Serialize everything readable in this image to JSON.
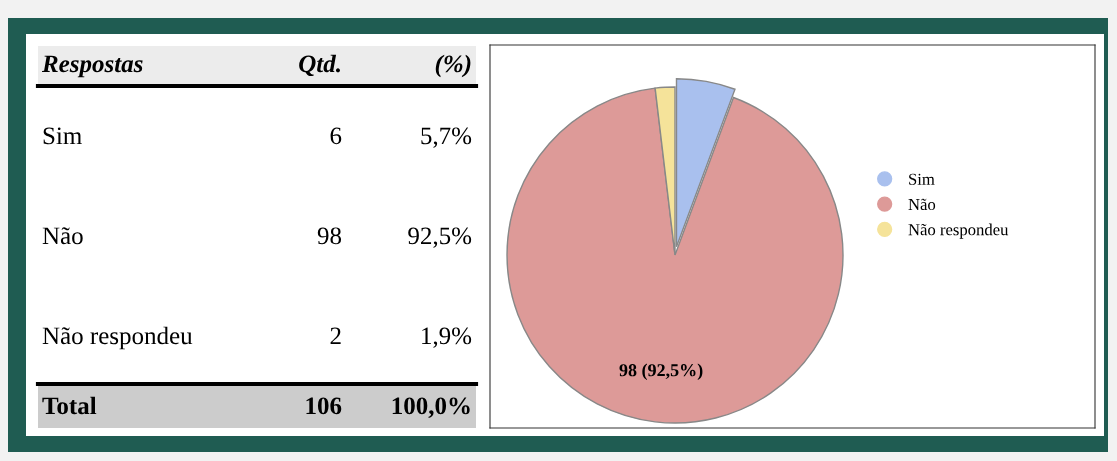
{
  "chart_data": {
    "type": "pie",
    "categories": [
      "Sim",
      "Não",
      "Não respondeu"
    ],
    "values": [
      6,
      98,
      2
    ],
    "colors": [
      "#a9c0ee",
      "#dd9a98",
      "#f5e39a"
    ],
    "value_labels": [
      null,
      "98 (92,5%)",
      null
    ],
    "annotations": [
      "Respostas",
      "Qtd.",
      "(%)",
      "6",
      "98",
      "2",
      "5,7%",
      "92,5%",
      "1,9%",
      "Total",
      "106",
      "100,0%"
    ],
    "legend": "right"
  }
}
